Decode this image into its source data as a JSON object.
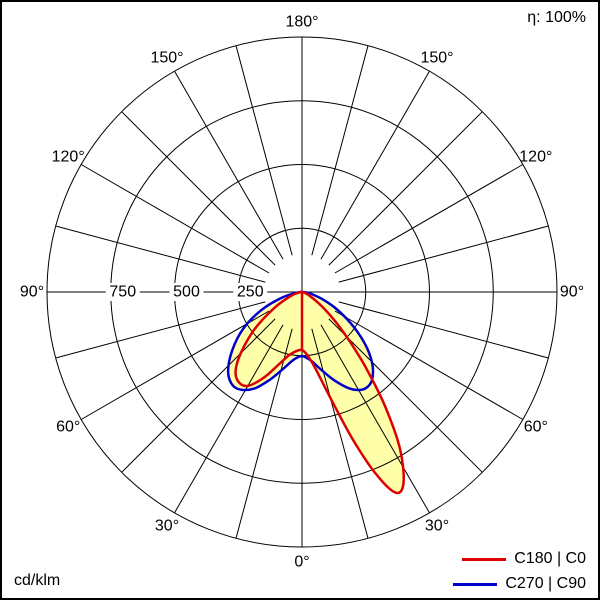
{
  "meta": {
    "efficiency_label": "η: 100%",
    "unit_label": "cd/klm"
  },
  "legend": [
    {
      "label": "C180 | C0",
      "color": "#dd0000"
    },
    {
      "label": "C270 | C90",
      "color": "#0000cc"
    }
  ],
  "chart_data": {
    "type": "polar",
    "subtype": "luminous-intensity-distribution",
    "unit": "cd/klm",
    "scale_max": 1000,
    "grid_on": true,
    "spoke_step_deg": 15,
    "grid_color": "#000000",
    "fill_color": "#ffffaa",
    "rings": [
      {
        "value": 250,
        "label": "250"
      },
      {
        "value": 500,
        "label": "500"
      },
      {
        "value": 750,
        "label": "750"
      },
      {
        "value": 1000,
        "label": ""
      }
    ],
    "angle_labels": [
      {
        "deg": 0,
        "label": "0°"
      },
      {
        "deg": 30,
        "label": "30°"
      },
      {
        "deg": 60,
        "label": "60°"
      },
      {
        "deg": 90,
        "label": "90°"
      },
      {
        "deg": 120,
        "label": "120°"
      },
      {
        "deg": 150,
        "label": "150°"
      },
      {
        "deg": 180,
        "label": "180°"
      }
    ],
    "series": [
      {
        "name": "C180 | C0",
        "color": "#dd0000",
        "radial_line_at_0": true,
        "points": [
          [
            -90,
            0
          ],
          [
            -80,
            12
          ],
          [
            -70,
            48
          ],
          [
            -60,
            125
          ],
          [
            -52,
            235
          ],
          [
            -45,
            340
          ],
          [
            -40,
            405
          ],
          [
            -35,
            432
          ],
          [
            -30,
            425
          ],
          [
            -24,
            368
          ],
          [
            -18,
            300
          ],
          [
            -12,
            255
          ],
          [
            -6,
            234
          ],
          [
            0,
            228
          ],
          [
            5,
            250
          ],
          [
            10,
            305
          ],
          [
            15,
            430
          ],
          [
            19,
            610
          ],
          [
            22,
            765
          ],
          [
            25,
            868
          ],
          [
            28,
            848
          ],
          [
            32,
            725
          ],
          [
            36,
            555
          ],
          [
            40,
            395
          ],
          [
            44,
            270
          ],
          [
            48,
            185
          ],
          [
            53,
            110
          ],
          [
            58,
            62
          ],
          [
            65,
            28
          ],
          [
            72,
            12
          ],
          [
            80,
            4
          ],
          [
            90,
            0
          ]
        ]
      },
      {
        "name": "C270 | C90",
        "color": "#0000cc",
        "radial_line_at_0": false,
        "points": [
          [
            -90,
            0
          ],
          [
            -82,
            22
          ],
          [
            -74,
            85
          ],
          [
            -66,
            175
          ],
          [
            -58,
            272
          ],
          [
            -50,
            358
          ],
          [
            -43,
            425
          ],
          [
            -37,
            455
          ],
          [
            -32,
            452
          ],
          [
            -26,
            420
          ],
          [
            -20,
            365
          ],
          [
            -14,
            312
          ],
          [
            -8,
            272
          ],
          [
            -3,
            255
          ],
          [
            0,
            251
          ],
          [
            3,
            256
          ],
          [
            8,
            274
          ],
          [
            14,
            315
          ],
          [
            20,
            368
          ],
          [
            26,
            420
          ],
          [
            31,
            448
          ],
          [
            35,
            452
          ],
          [
            39,
            438
          ],
          [
            44,
            398
          ],
          [
            49,
            340
          ],
          [
            54,
            272
          ],
          [
            59,
            205
          ],
          [
            65,
            138
          ],
          [
            71,
            82
          ],
          [
            78,
            38
          ],
          [
            84,
            14
          ],
          [
            90,
            0
          ]
        ]
      }
    ]
  }
}
